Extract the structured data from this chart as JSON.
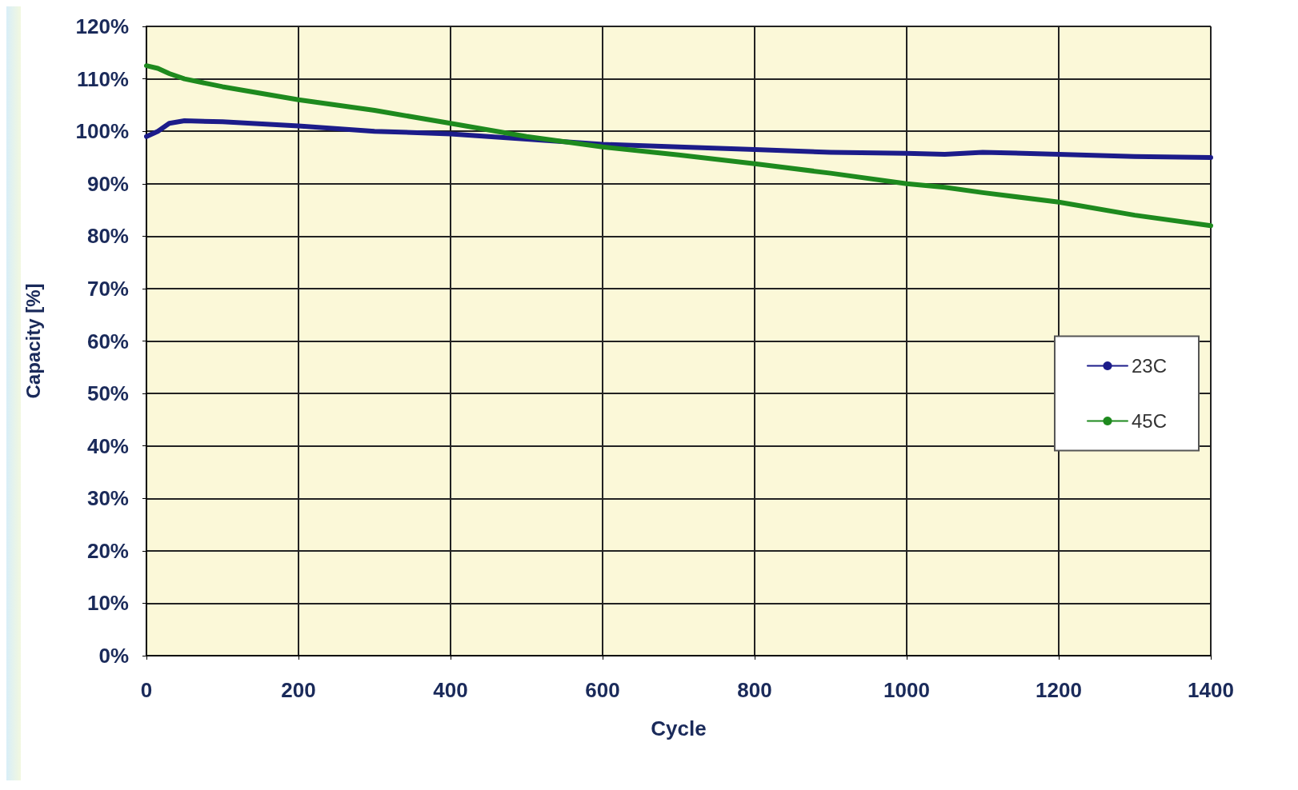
{
  "chart_data": {
    "type": "line",
    "xlabel": "Cycle",
    "ylabel": "Capacity [%]",
    "xlim": [
      0,
      1400
    ],
    "xticks": [
      0,
      200,
      400,
      600,
      800,
      1000,
      1200,
      1400
    ],
    "ylim": [
      0,
      120
    ],
    "yticks": [
      {
        "value": 0,
        "label": "0%"
      },
      {
        "value": 10,
        "label": "10%"
      },
      {
        "value": 20,
        "label": "20%"
      },
      {
        "value": 30,
        "label": "30%"
      },
      {
        "value": 40,
        "label": "40%"
      },
      {
        "value": 50,
        "label": "50%"
      },
      {
        "value": 60,
        "label": "60%"
      },
      {
        "value": 70,
        "label": "70%"
      },
      {
        "value": 80,
        "label": "80%"
      },
      {
        "value": 90,
        "label": "90%"
      },
      {
        "value": 100,
        "label": "100%"
      },
      {
        "value": 110,
        "label": "110%"
      },
      {
        "value": 120,
        "label": "120%"
      }
    ],
    "grid": true,
    "legend": "right",
    "x": [
      0,
      15,
      30,
      50,
      100,
      200,
      300,
      400,
      500,
      600,
      700,
      800,
      900,
      1000,
      1050,
      1100,
      1200,
      1300,
      1400
    ],
    "series": [
      {
        "name": "23C",
        "color": "#1c1c8a",
        "values": [
          99,
          100,
          101.5,
          102,
          101.8,
          101,
          100,
          99.5,
          98.5,
          97.5,
          97,
          96.5,
          96,
          95.8,
          95.6,
          96,
          95.6,
          95.2,
          95
        ]
      },
      {
        "name": "45C",
        "color": "#1e8a1e",
        "values": [
          112.5,
          112,
          111,
          110,
          108.5,
          106,
          104,
          101.5,
          99,
          97,
          95.5,
          93.8,
          92,
          90,
          89.3,
          88.3,
          86.5,
          84,
          82
        ]
      }
    ]
  }
}
